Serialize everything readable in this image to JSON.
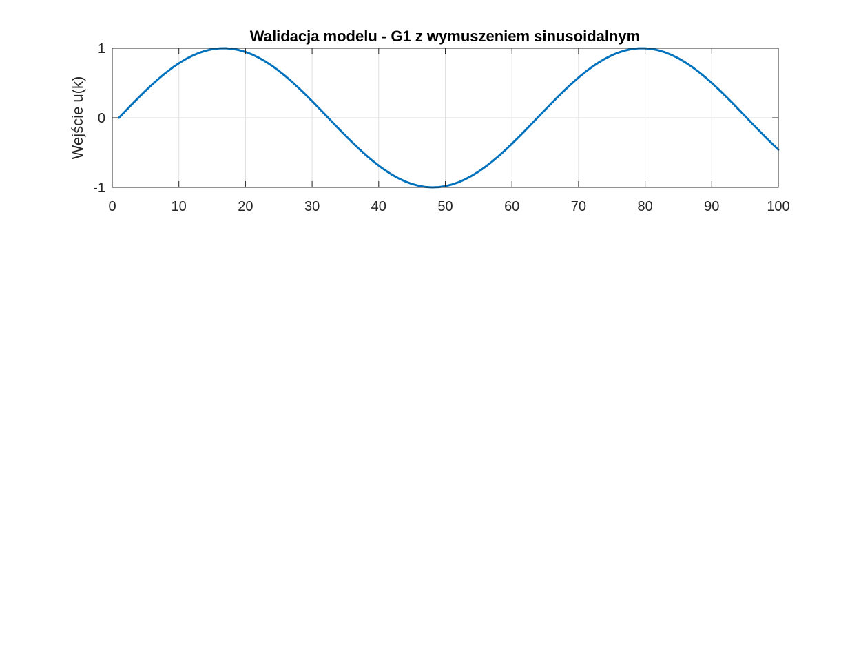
{
  "chart_data": {
    "type": "line",
    "title": "Walidacja modelu - G1 z wymuszeniem sinusoidalnym",
    "xlabel": "",
    "ylabel": "Wejście u(k)",
    "xlim": [
      0,
      100
    ],
    "ylim": [
      -1,
      1
    ],
    "xticks": [
      0,
      10,
      20,
      30,
      40,
      50,
      60,
      70,
      80,
      90,
      100
    ],
    "xtick_labels": [
      "0",
      "10",
      "20",
      "30",
      "40",
      "50",
      "60",
      "70",
      "80",
      "90",
      "100"
    ],
    "yticks": [
      -1,
      0,
      1
    ],
    "ytick_labels": [
      "-1",
      "0",
      "1"
    ],
    "grid": true,
    "legend": "none",
    "series": [
      {
        "color": "#0072BD",
        "x": [
          1,
          2,
          3,
          4,
          5,
          6,
          7,
          8,
          9,
          10,
          11,
          12,
          13,
          14,
          15,
          16,
          17,
          18,
          19,
          20,
          21,
          22,
          23,
          24,
          25,
          26,
          27,
          28,
          29,
          30,
          31,
          32,
          33,
          34,
          35,
          36,
          37,
          38,
          39,
          40,
          41,
          42,
          43,
          44,
          45,
          46,
          47,
          48,
          49,
          50,
          51,
          52,
          53,
          54,
          55,
          56,
          57,
          58,
          59,
          60,
          61,
          62,
          63,
          64,
          65,
          66,
          67,
          68,
          69,
          70,
          71,
          72,
          73,
          74,
          75,
          76,
          77,
          78,
          79,
          80,
          81,
          82,
          83,
          84,
          85,
          86,
          87,
          88,
          89,
          90,
          91,
          92,
          93,
          94,
          95,
          96,
          97,
          98,
          99,
          100
        ],
        "y": [
          0.0,
          0.0998,
          0.1987,
          0.2955,
          0.3894,
          0.4794,
          0.5646,
          0.6442,
          0.7174,
          0.7833,
          0.8415,
          0.8912,
          0.932,
          0.9636,
          0.9854,
          0.9975,
          0.9996,
          0.9917,
          0.9738,
          0.9463,
          0.9093,
          0.8632,
          0.8085,
          0.7457,
          0.6755,
          0.5985,
          0.5155,
          0.4274,
          0.335,
          0.2392,
          0.1411,
          0.0416,
          -0.0584,
          -0.1577,
          -0.2555,
          -0.3508,
          -0.4425,
          -0.5298,
          -0.6119,
          -0.6878,
          -0.7568,
          -0.8183,
          -0.8716,
          -0.9162,
          -0.9516,
          -0.9775,
          -0.9937,
          -0.9999,
          -0.9962,
          -0.9825,
          -0.9589,
          -0.9258,
          -0.8835,
          -0.8323,
          -0.7728,
          -0.7055,
          -0.6313,
          -0.5507,
          -0.4646,
          -0.3739,
          -0.2794,
          -0.1822,
          -0.0831,
          0.0168,
          0.1165,
          0.2151,
          0.3115,
          0.4048,
          0.4941,
          0.5784,
          0.657,
          0.729,
          0.7937,
          0.8504,
          0.8987,
          0.938,
          0.9679,
          0.9882,
          0.9985,
          0.9989,
          0.9894,
          0.9699,
          0.9407,
          0.9022,
          0.8546,
          0.7985,
          0.7344,
          0.663,
          0.585,
          0.501,
          0.4121,
          0.319,
          0.2229,
          0.1245,
          0.0248,
          -0.0752,
          -0.1743,
          -0.2718,
          -0.3665,
          -0.4575
        ]
      }
    ]
  }
}
